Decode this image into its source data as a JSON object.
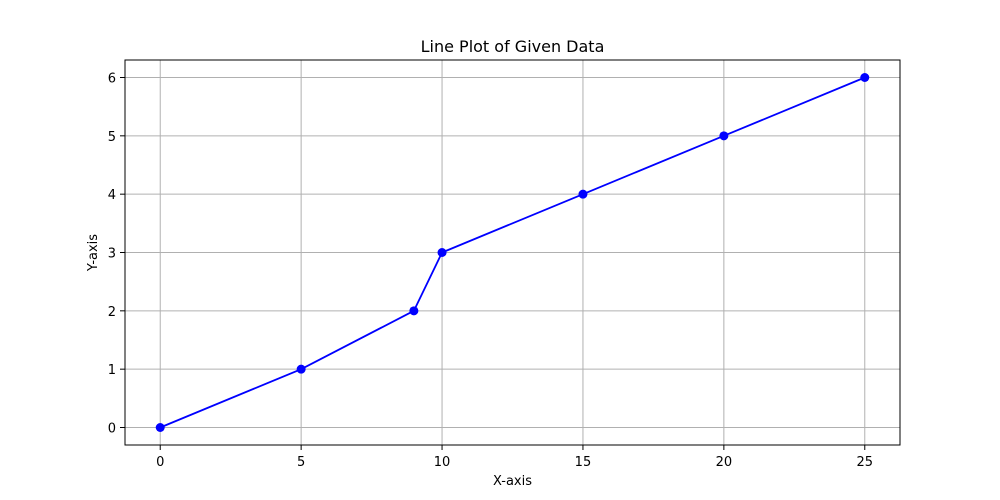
{
  "chart_data": {
    "type": "line",
    "title": "Line Plot of Given Data",
    "xlabel": "X-axis",
    "ylabel": "Y-axis",
    "xlim": [
      -1.25,
      26.25
    ],
    "ylim": [
      -0.3,
      6.3
    ],
    "xticks": [
      0,
      5,
      10,
      15,
      20,
      25
    ],
    "yticks": [
      0,
      1,
      2,
      3,
      4,
      5,
      6
    ],
    "grid": true,
    "series": [
      {
        "x": [
          0,
          5,
          9,
          10,
          15,
          20,
          25
        ],
        "y": [
          0,
          1,
          2,
          3,
          4,
          5,
          6
        ],
        "color": "#0000ff",
        "marker": "circle"
      }
    ]
  }
}
